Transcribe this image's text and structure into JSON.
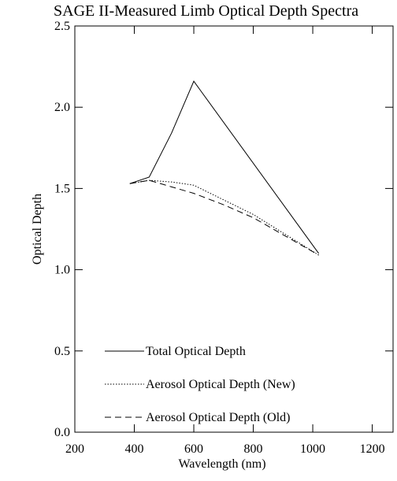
{
  "chart_data": {
    "type": "line",
    "title": "SAGE II-Measured Limb Optical Depth Spectra",
    "x_label": "Wavelength (nm)",
    "y_label": "Optical Depth",
    "xlim": [
      200,
      1270
    ],
    "ylim": [
      0,
      2.5
    ],
    "xticks": [
      200,
      400,
      600,
      800,
      1000,
      1200
    ],
    "yticks": [
      {
        "value": 0,
        "label": "0.0"
      },
      0.5,
      {
        "value": 1,
        "label": "1.0"
      },
      1.5,
      {
        "value": 2,
        "label": "2.0"
      },
      2.5
    ],
    "series": [
      {
        "name": "Total Optical Depth",
        "color": "#000000",
        "dash": "solid",
        "x": [
          385,
          450,
          525,
          600,
          1020
        ],
        "values": [
          1.53,
          1.57,
          1.84,
          2.16,
          1.1
        ]
      },
      {
        "name": "Aerosol Optical Depth (New)",
        "color": "#000000",
        "dash": "dotted",
        "x": [
          385,
          450,
          525,
          600,
          700,
          800,
          1020
        ],
        "values": [
          1.53,
          1.55,
          1.54,
          1.52,
          1.43,
          1.34,
          1.09
        ]
      },
      {
        "name": "Aerosol Optical Depth (Old)",
        "color": "#000000",
        "dash": "dashed",
        "x": [
          385,
          450,
          525,
          600,
          700,
          800,
          1020
        ],
        "values": [
          1.53,
          1.55,
          1.51,
          1.47,
          1.4,
          1.32,
          1.09
        ]
      }
    ]
  }
}
